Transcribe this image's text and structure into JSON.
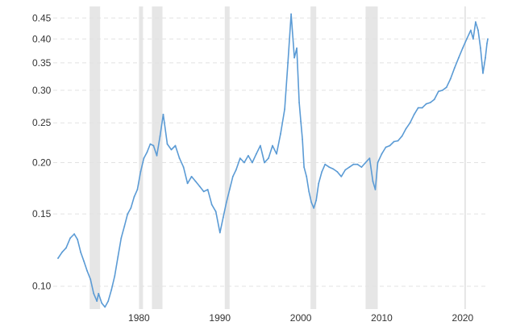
{
  "chart_data": {
    "type": "line",
    "title": "",
    "xlabel": "",
    "ylabel": "",
    "y_scale": "log",
    "xlim": [
      1970,
      2023.2
    ],
    "ylim": [
      0.088,
      0.48
    ],
    "grid": true,
    "legend": "none",
    "x_ticks": [
      {
        "value": 1980,
        "label": "1980"
      },
      {
        "value": 1990,
        "label": "1990"
      },
      {
        "value": 2000,
        "label": "2000"
      },
      {
        "value": 2010,
        "label": "2010"
      },
      {
        "value": 2020,
        "label": "2020"
      }
    ],
    "y_ticks": [
      {
        "value": 0.1,
        "label": "0.10"
      },
      {
        "value": 0.15,
        "label": "0.15"
      },
      {
        "value": 0.2,
        "label": "0.20"
      },
      {
        "value": 0.25,
        "label": "0.25"
      },
      {
        "value": 0.3,
        "label": "0.30"
      },
      {
        "value": 0.35,
        "label": "0.35"
      },
      {
        "value": 0.4,
        "label": "0.40"
      },
      {
        "value": 0.45,
        "label": "0.45"
      }
    ],
    "recessions": [
      [
        1973.9,
        1975.2
      ],
      [
        1980.0,
        1980.5
      ],
      [
        1981.6,
        1982.9
      ],
      [
        1990.6,
        1991.2
      ],
      [
        2001.2,
        2001.9
      ],
      [
        2008.0,
        2009.5
      ],
      [
        2020.2,
        2020.4
      ]
    ],
    "series": [
      {
        "color": "#5b9bd5",
        "x": [
          1970.0,
          1970.5,
          1971.0,
          1971.5,
          1972.0,
          1972.4,
          1972.8,
          1973.2,
          1973.6,
          1974.0,
          1974.4,
          1974.8,
          1975.0,
          1975.4,
          1975.8,
          1976.2,
          1976.6,
          1977.0,
          1977.4,
          1977.8,
          1978.2,
          1978.6,
          1979.0,
          1979.4,
          1979.8,
          1980.2,
          1980.6,
          1981.0,
          1981.4,
          1981.8,
          1982.2,
          1982.6,
          1983.0,
          1983.5,
          1984.0,
          1984.5,
          1985.0,
          1985.5,
          1986.0,
          1986.5,
          1987.0,
          1987.5,
          1988.0,
          1988.5,
          1989.0,
          1989.5,
          1990.0,
          1990.4,
          1990.8,
          1991.2,
          1991.6,
          1992.0,
          1992.5,
          1993.0,
          1993.5,
          1994.0,
          1994.5,
          1995.0,
          1995.5,
          1996.0,
          1996.5,
          1997.0,
          1997.5,
          1998.0,
          1998.4,
          1998.8,
          1999.2,
          1999.5,
          1999.8,
          2000.0,
          2000.2,
          2000.4,
          2000.7,
          2001.0,
          2001.3,
          2001.6,
          2001.9,
          2002.2,
          2002.6,
          2003.0,
          2003.5,
          2004.0,
          2004.5,
          2005.0,
          2005.5,
          2006.0,
          2006.5,
          2007.0,
          2007.5,
          2008.0,
          2008.5,
          2008.9,
          2009.2,
          2009.5,
          2010.0,
          2010.5,
          2011.0,
          2011.5,
          2012.0,
          2012.5,
          2013.0,
          2013.5,
          2014.0,
          2014.5,
          2015.0,
          2015.5,
          2016.0,
          2016.5,
          2017.0,
          2017.5,
          2018.0,
          2018.5,
          2019.0,
          2019.5,
          2020.0,
          2020.5,
          2021.0,
          2021.3,
          2021.6,
          2021.9,
          2022.2,
          2022.5,
          2022.8,
          2023.0,
          2023.1
        ],
        "values": [
          0.117,
          0.121,
          0.124,
          0.131,
          0.134,
          0.13,
          0.121,
          0.115,
          0.109,
          0.104,
          0.096,
          0.092,
          0.096,
          0.091,
          0.089,
          0.092,
          0.098,
          0.106,
          0.118,
          0.131,
          0.14,
          0.15,
          0.155,
          0.165,
          0.172,
          0.19,
          0.205,
          0.212,
          0.222,
          0.22,
          0.208,
          0.232,
          0.262,
          0.222,
          0.215,
          0.22,
          0.205,
          0.195,
          0.178,
          0.185,
          0.18,
          0.175,
          0.17,
          0.172,
          0.158,
          0.152,
          0.135,
          0.147,
          0.16,
          0.172,
          0.185,
          0.192,
          0.205,
          0.2,
          0.208,
          0.2,
          0.21,
          0.22,
          0.2,
          0.205,
          0.22,
          0.21,
          0.235,
          0.27,
          0.35,
          0.46,
          0.36,
          0.38,
          0.28,
          0.252,
          0.228,
          0.195,
          0.185,
          0.17,
          0.16,
          0.155,
          0.162,
          0.178,
          0.19,
          0.198,
          0.195,
          0.193,
          0.19,
          0.185,
          0.192,
          0.195,
          0.198,
          0.198,
          0.195,
          0.2,
          0.205,
          0.18,
          0.172,
          0.2,
          0.21,
          0.218,
          0.22,
          0.225,
          0.226,
          0.232,
          0.242,
          0.25,
          0.262,
          0.272,
          0.272,
          0.278,
          0.28,
          0.285,
          0.298,
          0.3,
          0.305,
          0.32,
          0.34,
          0.36,
          0.38,
          0.4,
          0.42,
          0.4,
          0.44,
          0.42,
          0.38,
          0.33,
          0.36,
          0.39,
          0.4
        ]
      }
    ]
  }
}
